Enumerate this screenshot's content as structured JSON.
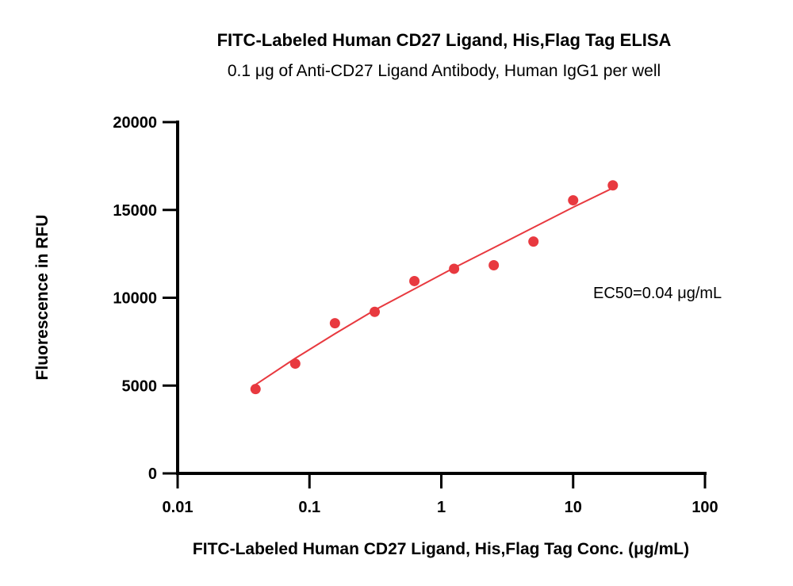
{
  "chart_data": {
    "type": "scatter",
    "title": "FITC-Labeled Human CD27 Ligand, His,Flag Tag ELISA",
    "subtitle": "0.1 μg of Anti-CD27 Ligand Antibody, Human IgG1 per well",
    "xlabel": "FITC-Labeled Human CD27 Ligand, His,Flag Tag Conc. (μg/mL)",
    "ylabel": "Fluorescence in RFU",
    "xscale": "log",
    "xlim": [
      0.01,
      100
    ],
    "ylim": [
      0,
      20000
    ],
    "x_ticks": [
      0.01,
      0.1,
      1,
      10,
      100
    ],
    "x_tick_labels": [
      "0.01",
      "0.1",
      "1",
      "10",
      "100"
    ],
    "y_ticks": [
      0,
      5000,
      10000,
      15000,
      20000
    ],
    "y_tick_labels": [
      "0",
      "5000",
      "10000",
      "15000",
      "20000"
    ],
    "grid": false,
    "series": [
      {
        "color": "#e8393f",
        "x": [
          0.039,
          0.078,
          0.156,
          0.3125,
          0.625,
          1.25,
          2.5,
          5,
          10,
          20
        ],
        "y": [
          4800,
          6250,
          8550,
          9200,
          10950,
          11650,
          11850,
          13200,
          15550,
          16400
        ]
      }
    ],
    "fit_curve": {
      "color": "#e8393f",
      "x": [
        0.039,
        0.078,
        0.156,
        0.3125,
        0.625,
        1.25,
        2.5,
        5,
        10,
        20
      ],
      "y": [
        5050,
        6550,
        7950,
        9300,
        10500,
        11700,
        12850,
        14000,
        15150,
        16250
      ]
    },
    "annotations": [
      {
        "text": "EC50=0.04 μg/mL"
      }
    ]
  }
}
